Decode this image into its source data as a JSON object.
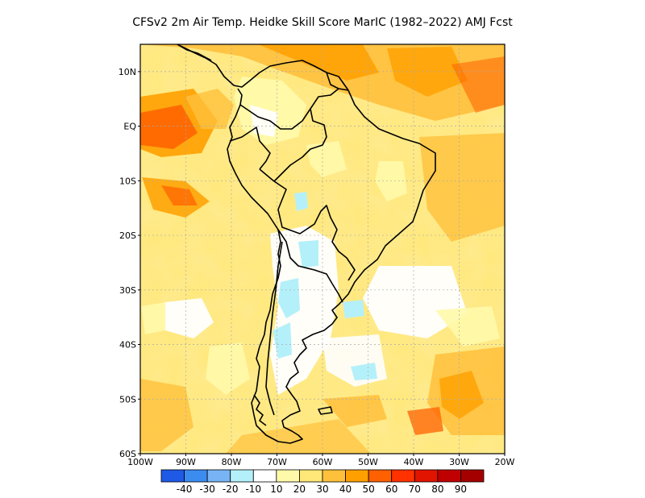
{
  "title": "CFSv2  2m Air Temp. Heidke Skill Score MarIC (1982–2022) AMJ Fcst",
  "map": {
    "lat_labels": [
      "10N",
      "EQ",
      "10S",
      "20S",
      "30S",
      "40S",
      "50S",
      "60S"
    ],
    "lat_values": [
      10,
      0,
      -10,
      -20,
      -30,
      -40,
      -50,
      -60
    ],
    "lon_labels": [
      "100W",
      "90W",
      "80W",
      "70W",
      "60W",
      "50W",
      "40W",
      "30W",
      "20W"
    ],
    "lon_values": [
      -100,
      -90,
      -80,
      -70,
      -60,
      -50,
      -40,
      -30,
      -20
    ],
    "lat_range": [
      -60,
      15
    ],
    "lon_range": [
      -100,
      -20
    ],
    "grid": true
  },
  "colorbar": {
    "labels": [
      "-40",
      "-30",
      "-20",
      "-10",
      "10",
      "20",
      "30",
      "40",
      "50",
      "60",
      "70",
      "80",
      "90"
    ],
    "colors": [
      "#1e5ae6",
      "#3c8cf0",
      "#78b4f5",
      "#b4f0fa",
      "#ffffff",
      "#fffaaa",
      "#ffe878",
      "#ffc03c",
      "#ffa000",
      "#ff6000",
      "#ff3200",
      "#e11400",
      "#c00000",
      "#a50000"
    ]
  }
}
